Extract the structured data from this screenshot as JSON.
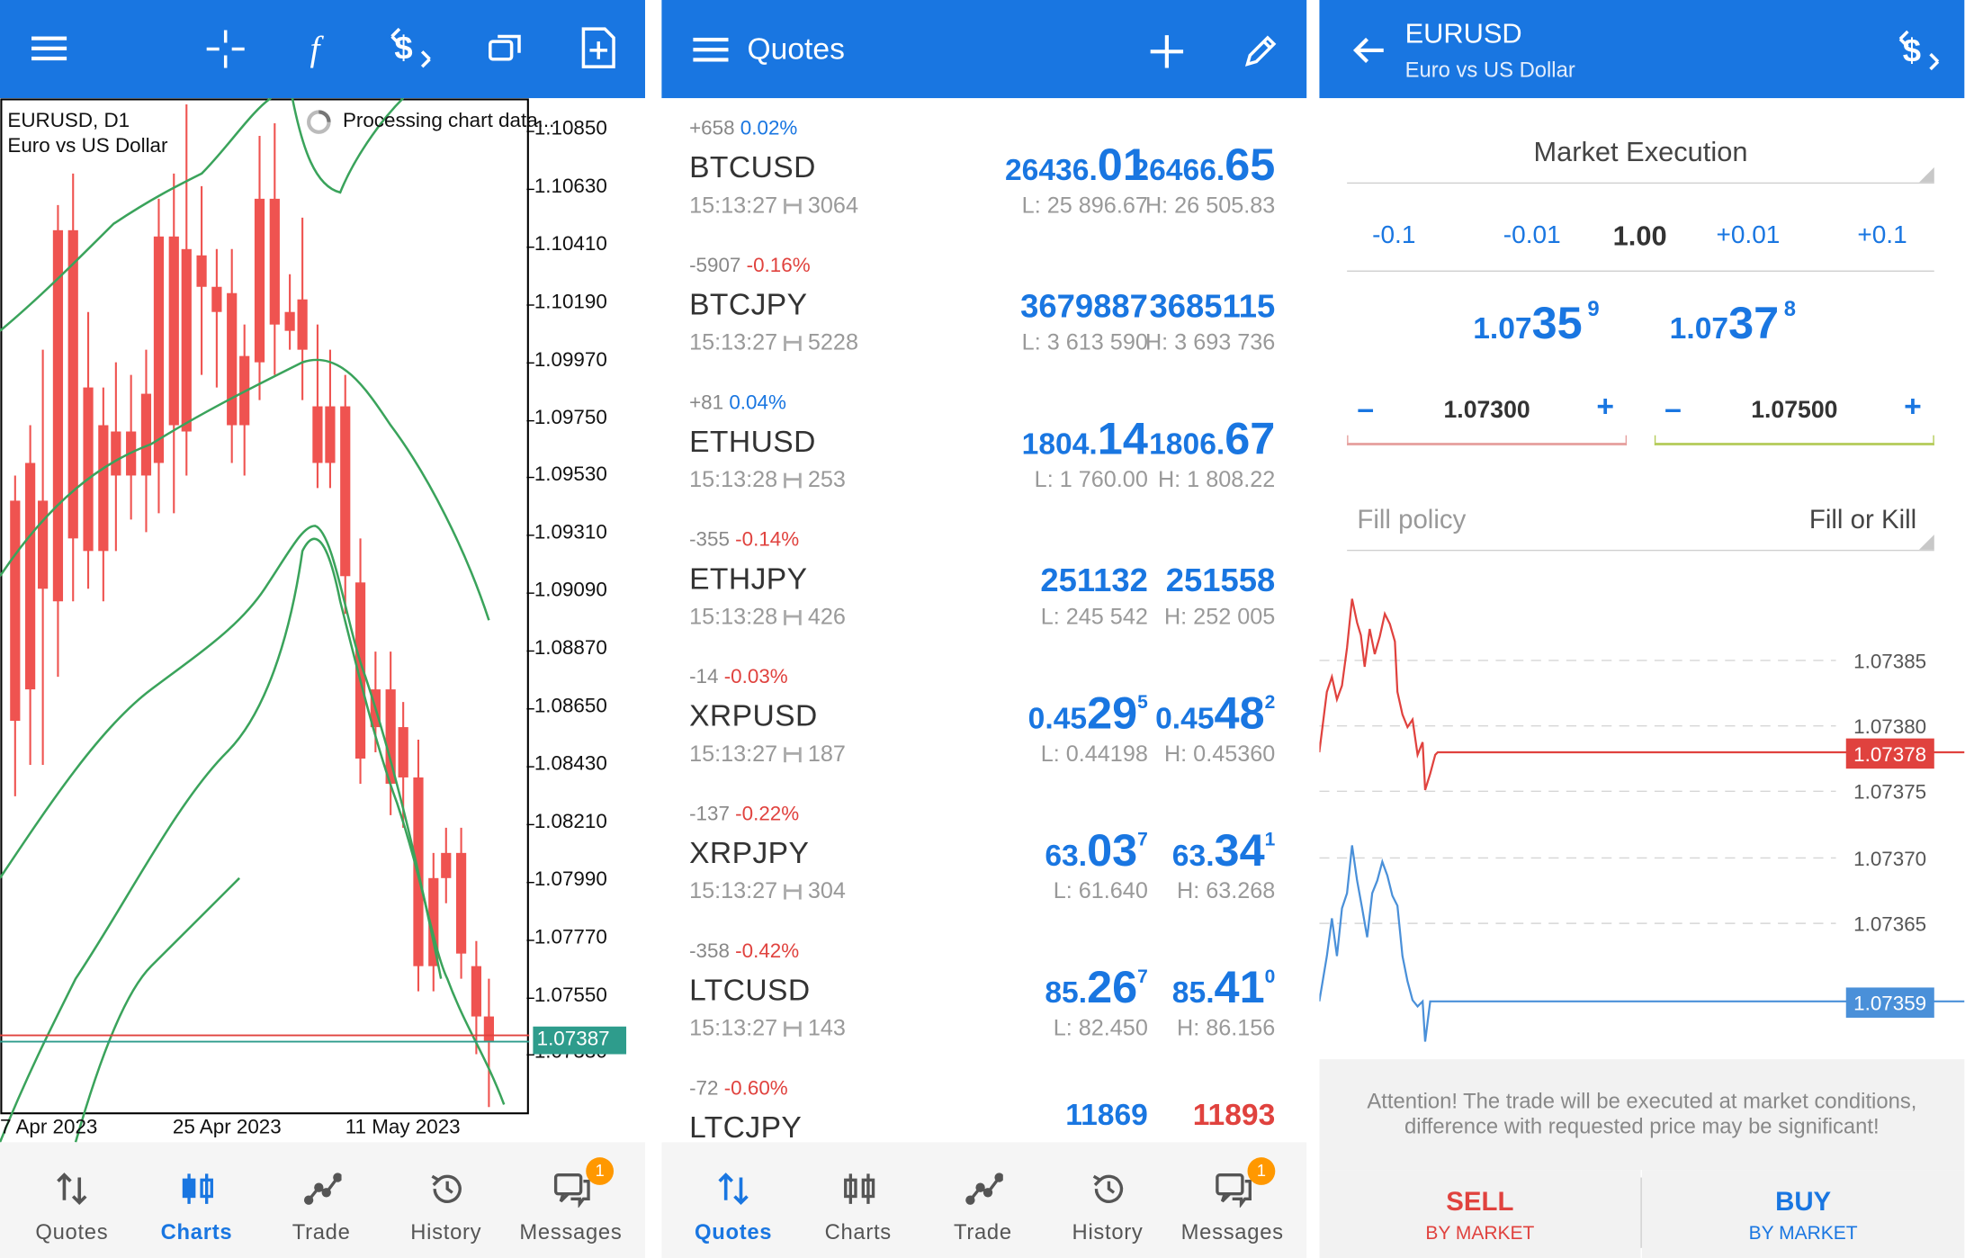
{
  "colors": {
    "accent": "#1976e1",
    "sell": "#e0423e",
    "buy": "#1976e1",
    "bull": "#26a69a",
    "bear": "#ef5350",
    "ma": "#3aa35b",
    "bid_line": "#e0423e",
    "ask_line": "#2e9c8c"
  },
  "chart_panel": {
    "toolbar_icons": [
      "menu-icon",
      "crosshair-icon",
      "indicators-icon",
      "trade-icon",
      "objects-icon",
      "add-chart-icon"
    ],
    "symbol_period": "EURUSD, D1",
    "symbol_desc": "Euro vs US Dollar",
    "processing": "Processing chart data...",
    "current_price": "1.07387",
    "price_ticks": [
      "1.10850",
      "1.10630",
      "1.10410",
      "1.10190",
      "1.09970",
      "1.09750",
      "1.09530",
      "1.09310",
      "1.09090",
      "1.08870",
      "1.08650",
      "1.08430",
      "1.08210",
      "1.07990",
      "1.07770",
      "1.07550",
      "1.07330"
    ],
    "date_ticks": [
      "7 Apr 2023",
      "25 Apr 2023",
      "11 May 2023"
    ],
    "nav": [
      "Quotes",
      "Charts",
      "Trade",
      "History",
      "Messages"
    ],
    "active_nav": "Charts",
    "badge": "1"
  },
  "quotes_panel": {
    "title": "Quotes",
    "rows": [
      {
        "chg_pts": "+658",
        "chg_pct": "0.02%",
        "dir": "pos",
        "symbol": "BTCUSD",
        "time": "15:13:27",
        "spread": "3064",
        "bid_sm": "26436.",
        "bid_big": "01",
        "bid_sup": "",
        "ask_sm": "26466.",
        "ask_big": "65",
        "ask_sup": "",
        "low": "L: 25 896.67",
        "high": "H: 26 505.83"
      },
      {
        "chg_pts": "-5907",
        "chg_pct": "-0.16%",
        "dir": "neg",
        "symbol": "BTCJPY",
        "time": "15:13:27",
        "spread": "5228",
        "bid_sm": "3679887",
        "bid_big": "",
        "bid_sup": "",
        "ask_sm": "3685115",
        "ask_big": "",
        "ask_sup": "",
        "low": "L: 3 613 590",
        "high": "H: 3 693 736"
      },
      {
        "chg_pts": "+81",
        "chg_pct": "0.04%",
        "dir": "pos",
        "symbol": "ETHUSD",
        "time": "15:13:28",
        "spread": "253",
        "bid_sm": "1804.",
        "bid_big": "14",
        "bid_sup": "",
        "ask_sm": "1806.",
        "ask_big": "67",
        "ask_sup": "",
        "low": "L: 1 760.00",
        "high": "H: 1 808.22"
      },
      {
        "chg_pts": "-355",
        "chg_pct": "-0.14%",
        "dir": "neg",
        "symbol": "ETHJPY",
        "time": "15:13:28",
        "spread": "426",
        "bid_sm": "251132",
        "bid_big": "",
        "bid_sup": "",
        "ask_sm": "251558",
        "ask_big": "",
        "ask_sup": "",
        "low": "L: 245 542",
        "high": "H: 252 005"
      },
      {
        "chg_pts": "-14",
        "chg_pct": "-0.03%",
        "dir": "neg",
        "symbol": "XRPUSD",
        "time": "15:13:27",
        "spread": "187",
        "bid_sm": "0.45",
        "bid_big": "29",
        "bid_sup": "5",
        "ask_sm": "0.45",
        "ask_big": "48",
        "ask_sup": "2",
        "low": "L: 0.44198",
        "high": "H: 0.45360"
      },
      {
        "chg_pts": "-137",
        "chg_pct": "-0.22%",
        "dir": "neg",
        "symbol": "XRPJPY",
        "time": "15:13:27",
        "spread": "304",
        "bid_sm": "63.",
        "bid_big": "03",
        "bid_sup": "7",
        "ask_sm": "63.",
        "ask_big": "34",
        "ask_sup": "1",
        "low": "L: 61.640",
        "high": "H: 63.268"
      },
      {
        "chg_pts": "-358",
        "chg_pct": "-0.42%",
        "dir": "neg",
        "symbol": "LTCUSD",
        "time": "15:13:27",
        "spread": "143",
        "bid_sm": "85.",
        "bid_big": "26",
        "bid_sup": "7",
        "ask_sm": "85.",
        "ask_big": "41",
        "ask_sup": "0",
        "low": "L: 82.450",
        "high": "H: 86.156"
      },
      {
        "chg_pts": "-72",
        "chg_pct": "-0.60%",
        "dir": "neg",
        "symbol": "LTCJPY",
        "time": "",
        "spread": "",
        "bid_sm": "11869",
        "bid_big": "",
        "bid_sup": "",
        "ask_sm": "11893",
        "ask_big": "",
        "ask_sup": "",
        "low": "",
        "high": ""
      }
    ],
    "nav": [
      "Quotes",
      "Charts",
      "Trade",
      "History",
      "Messages"
    ],
    "active_nav": "Quotes",
    "badge": "1"
  },
  "trade_panel": {
    "symbol": "EURUSD",
    "description": "Euro vs US Dollar",
    "execution": "Market Execution",
    "volume_steps": [
      "-0.1",
      "-0.01",
      "1.00",
      "+0.01",
      "+0.1"
    ],
    "bid_prefix": "1.07",
    "bid_big": "35",
    "bid_sup": "9",
    "ask_prefix": "1.07",
    "ask_big": "37",
    "ask_sup": "8",
    "sl_value": "1.07300",
    "tp_value": "1.07500",
    "fill_label": "Fill policy",
    "fill_value": "Fill or Kill",
    "tick_levels": [
      "1.07385",
      "1.07380",
      "1.07375",
      "1.07370",
      "1.07365"
    ],
    "ask_level": "1.07378",
    "bid_level": "1.07359",
    "attention": "Attention! The trade will be executed at market conditions, difference with requested price may be significant!",
    "sell_label": "SELL",
    "sell_sub": "BY MARKET",
    "buy_label": "BUY",
    "buy_sub": "BY MARKET"
  }
}
